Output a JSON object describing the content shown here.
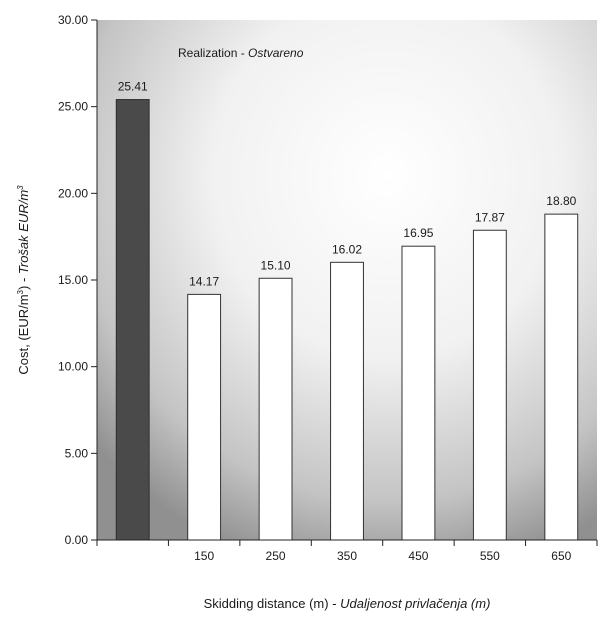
{
  "chart_data": {
    "type": "bar",
    "categories": [
      "",
      "150",
      "250",
      "350",
      "450",
      "550",
      "650"
    ],
    "values": [
      25.41,
      14.17,
      15.1,
      16.02,
      16.95,
      17.87,
      18.8
    ],
    "data_labels": [
      "25.41",
      "14.17",
      "15.10",
      "16.02",
      "16.95",
      "17.87",
      "18.80"
    ],
    "bar_colors": [
      "#4a4a4a",
      "#ffffff",
      "#ffffff",
      "#ffffff",
      "#ffffff",
      "#ffffff",
      "#ffffff"
    ],
    "annotation": "Realization - Ostvareno",
    "annotation_parts": {
      "plain": "Realization - ",
      "italic": "Ostvareno"
    },
    "xlabel": "Skidding distance (m) - Udaljenost privlačenja (m)",
    "xlabel_parts": {
      "plain": "Skidding distance (m) - ",
      "italic": "Udaljenost privlačenja (m)"
    },
    "ylabel": "Cost, (EUR/m³) - Trošak EUR/m³",
    "ylabel_parts": {
      "plain1": "Cost, (EUR/m",
      "sup1": "3",
      "plain2": ") - ",
      "italic": "Trošak EUR/m",
      "sup2": "3"
    },
    "ylim": [
      0,
      30
    ],
    "yticks": [
      "0.00",
      "5.00",
      "10.00",
      "15.00",
      "20.00",
      "25.00",
      "30.00"
    ],
    "grid": false,
    "background_gradient": [
      "#8f8f8f",
      "#e6e6e6",
      "#ffffff"
    ]
  }
}
